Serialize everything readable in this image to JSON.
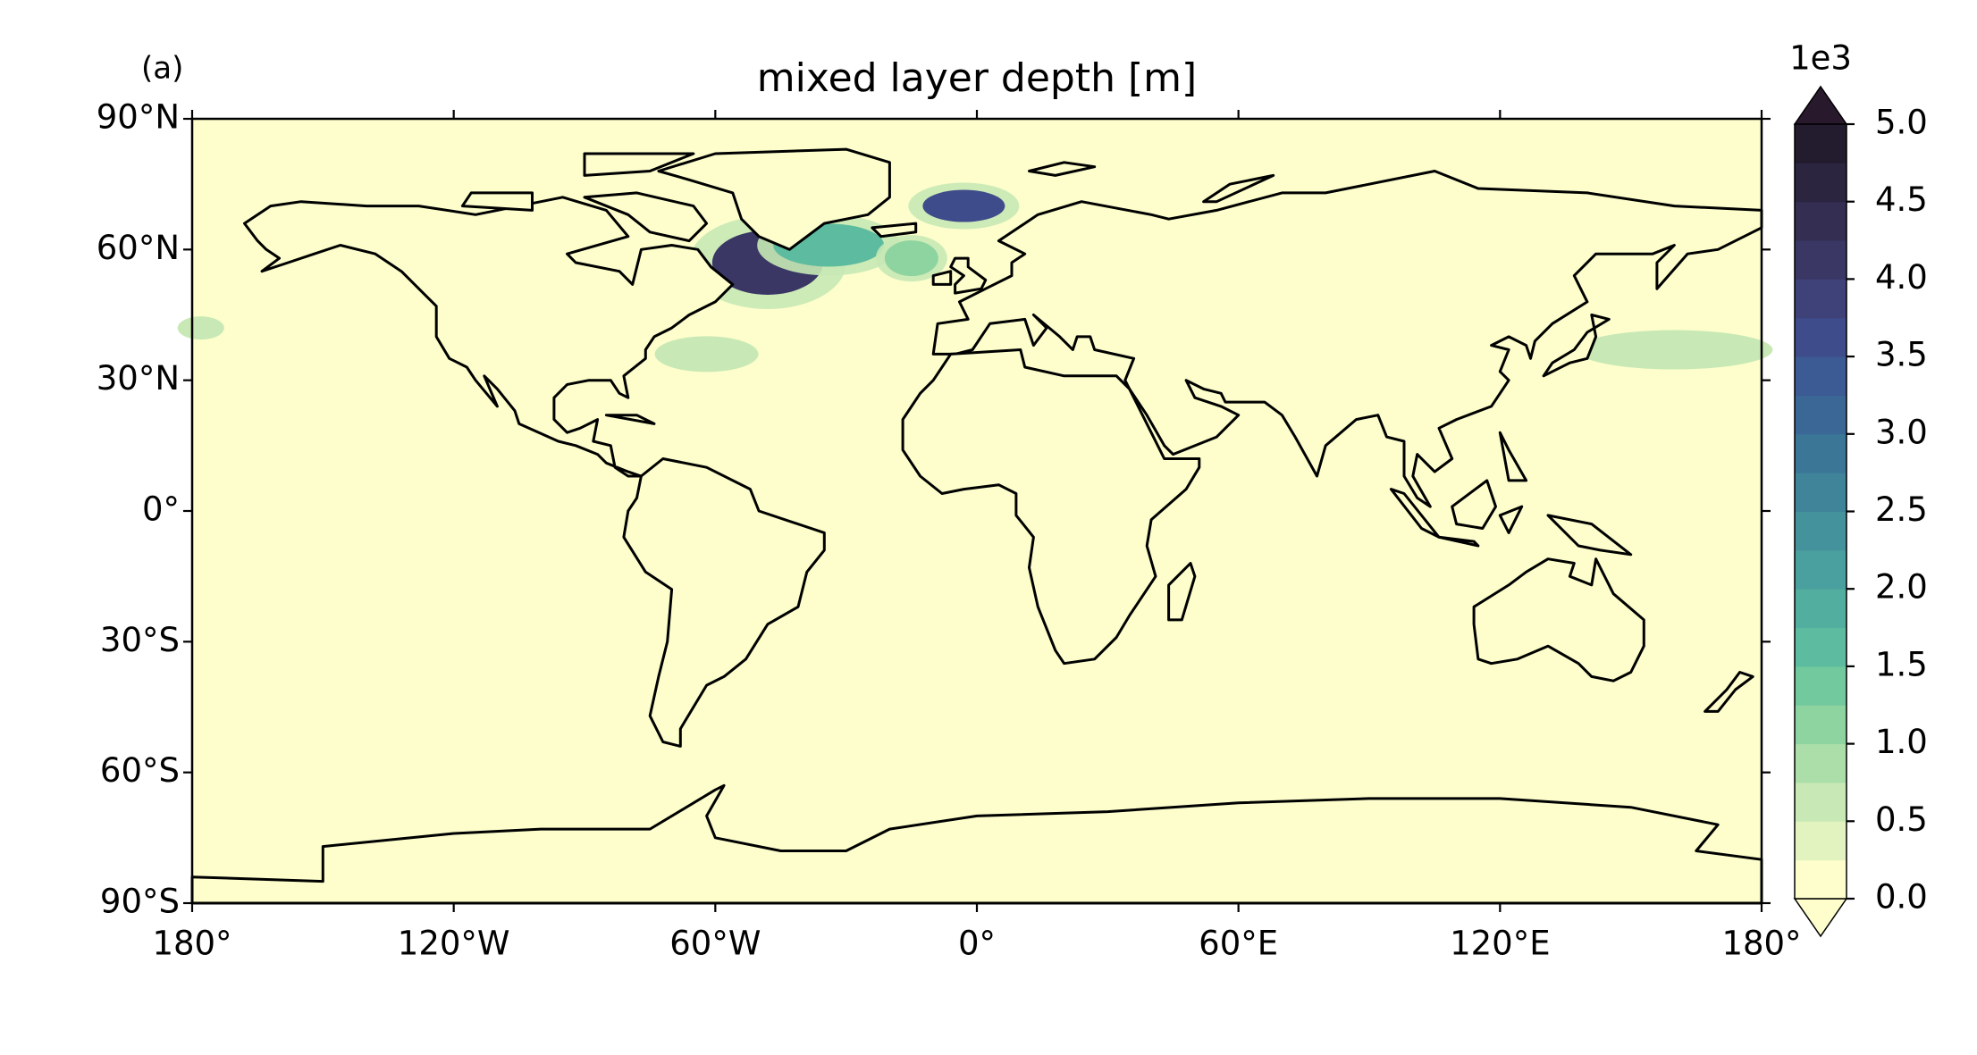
{
  "chart_data": {
    "type": "contour-map",
    "title": "mixed layer depth [m]",
    "panel_label": "(a)",
    "xlim": [
      -180,
      180
    ],
    "ylim": [
      -90,
      90
    ],
    "xticks": [
      {
        "value": -180,
        "label": "180°"
      },
      {
        "value": -120,
        "label": "120°W"
      },
      {
        "value": -60,
        "label": "60°W"
      },
      {
        "value": 0,
        "label": "0°"
      },
      {
        "value": 60,
        "label": "60°E"
      },
      {
        "value": 120,
        "label": "120°E"
      },
      {
        "value": 180,
        "label": "180°"
      }
    ],
    "yticks": [
      {
        "value": -90,
        "label": "90°S"
      },
      {
        "value": -60,
        "label": "60°S"
      },
      {
        "value": -30,
        "label": "30°S"
      },
      {
        "value": 0,
        "label": "0°"
      },
      {
        "value": 30,
        "label": "30°N"
      },
      {
        "value": 60,
        "label": "60°N"
      },
      {
        "value": 90,
        "label": "90°N"
      }
    ],
    "features": [
      {
        "lon": -48,
        "lat": 57,
        "value": 4.0
      },
      {
        "lon": -34,
        "lat": 61,
        "value": 1.5
      },
      {
        "lon": -3,
        "lat": 70,
        "value": 3.5
      },
      {
        "lon": -15,
        "lat": 58,
        "value": 1.0
      },
      {
        "lon": -62,
        "lat": 36,
        "value": 0.5
      },
      {
        "lon": 160,
        "lat": 37,
        "value": 0.5
      },
      {
        "lon": -178,
        "lat": 42,
        "value": 0.5
      }
    ],
    "colorbar": {
      "offset_label": "1e3",
      "clim": [
        0,
        5
      ],
      "levels": [
        0,
        0.25,
        0.5,
        0.75,
        1,
        1.25,
        1.5,
        1.75,
        2,
        2.25,
        2.5,
        2.75,
        3,
        3.25,
        3.5,
        3.75,
        4,
        4.25,
        4.5,
        4.75,
        5
      ],
      "colors": [
        "#fdfecc",
        "#e2f3c0",
        "#c8e9b5",
        "#abdea9",
        "#8ed4a0",
        "#72c99d",
        "#5dbc9f",
        "#52ae9f",
        "#4aa09e",
        "#44929c",
        "#3f8499",
        "#3b7697",
        "#3a6795",
        "#3c5a93",
        "#3f4c8b",
        "#3f4179",
        "#3a3765",
        "#332e52",
        "#2b2540",
        "#231c2f"
      ],
      "under_color": "#fdfecc",
      "over_color": "#281a2c",
      "ticks": [
        {
          "value": 0,
          "label": "0.0"
        },
        0.5,
        {
          "value": 1,
          "label": "1.0"
        },
        1.5,
        {
          "value": 2,
          "label": "2.0"
        },
        2.5,
        {
          "value": 3,
          "label": "3.0"
        },
        3.5,
        {
          "value": 4,
          "label": "4.0"
        },
        4.5,
        {
          "value": 5,
          "label": "5.0"
        }
      ]
    }
  }
}
